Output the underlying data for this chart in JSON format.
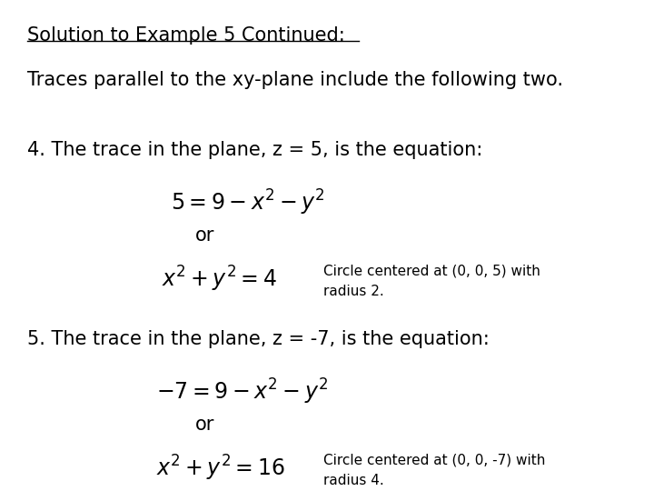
{
  "title": "Solution to Example 5 Continued:",
  "subtitle": "Traces parallel to the xy-plane include the following two.",
  "bg_color": "#ffffff",
  "text_color": "#000000",
  "font_size_title": 15,
  "font_size_body": 15,
  "font_size_math": 16,
  "font_size_annotation": 11,
  "section4_header": "4. The trace in the plane, z = 5, is the equation:",
  "section5_header": "5. The trace in the plane, z = -7, is the equation:",
  "eq4a": "$5 = 9 - x^2 - y^2$",
  "eq4b": "or",
  "eq4c": "$x^2 + y^2 = 4$",
  "ann4": "Circle centered at (0, 0, 5) with\nradius 2.",
  "eq5a": "$-7 = 9 - x^2 - y^2$",
  "eq5b": "or",
  "eq5c": "$x^2 + y^2 = 16$",
  "ann5": "Circle centered at (0, 0, -7) with\nradius 4."
}
